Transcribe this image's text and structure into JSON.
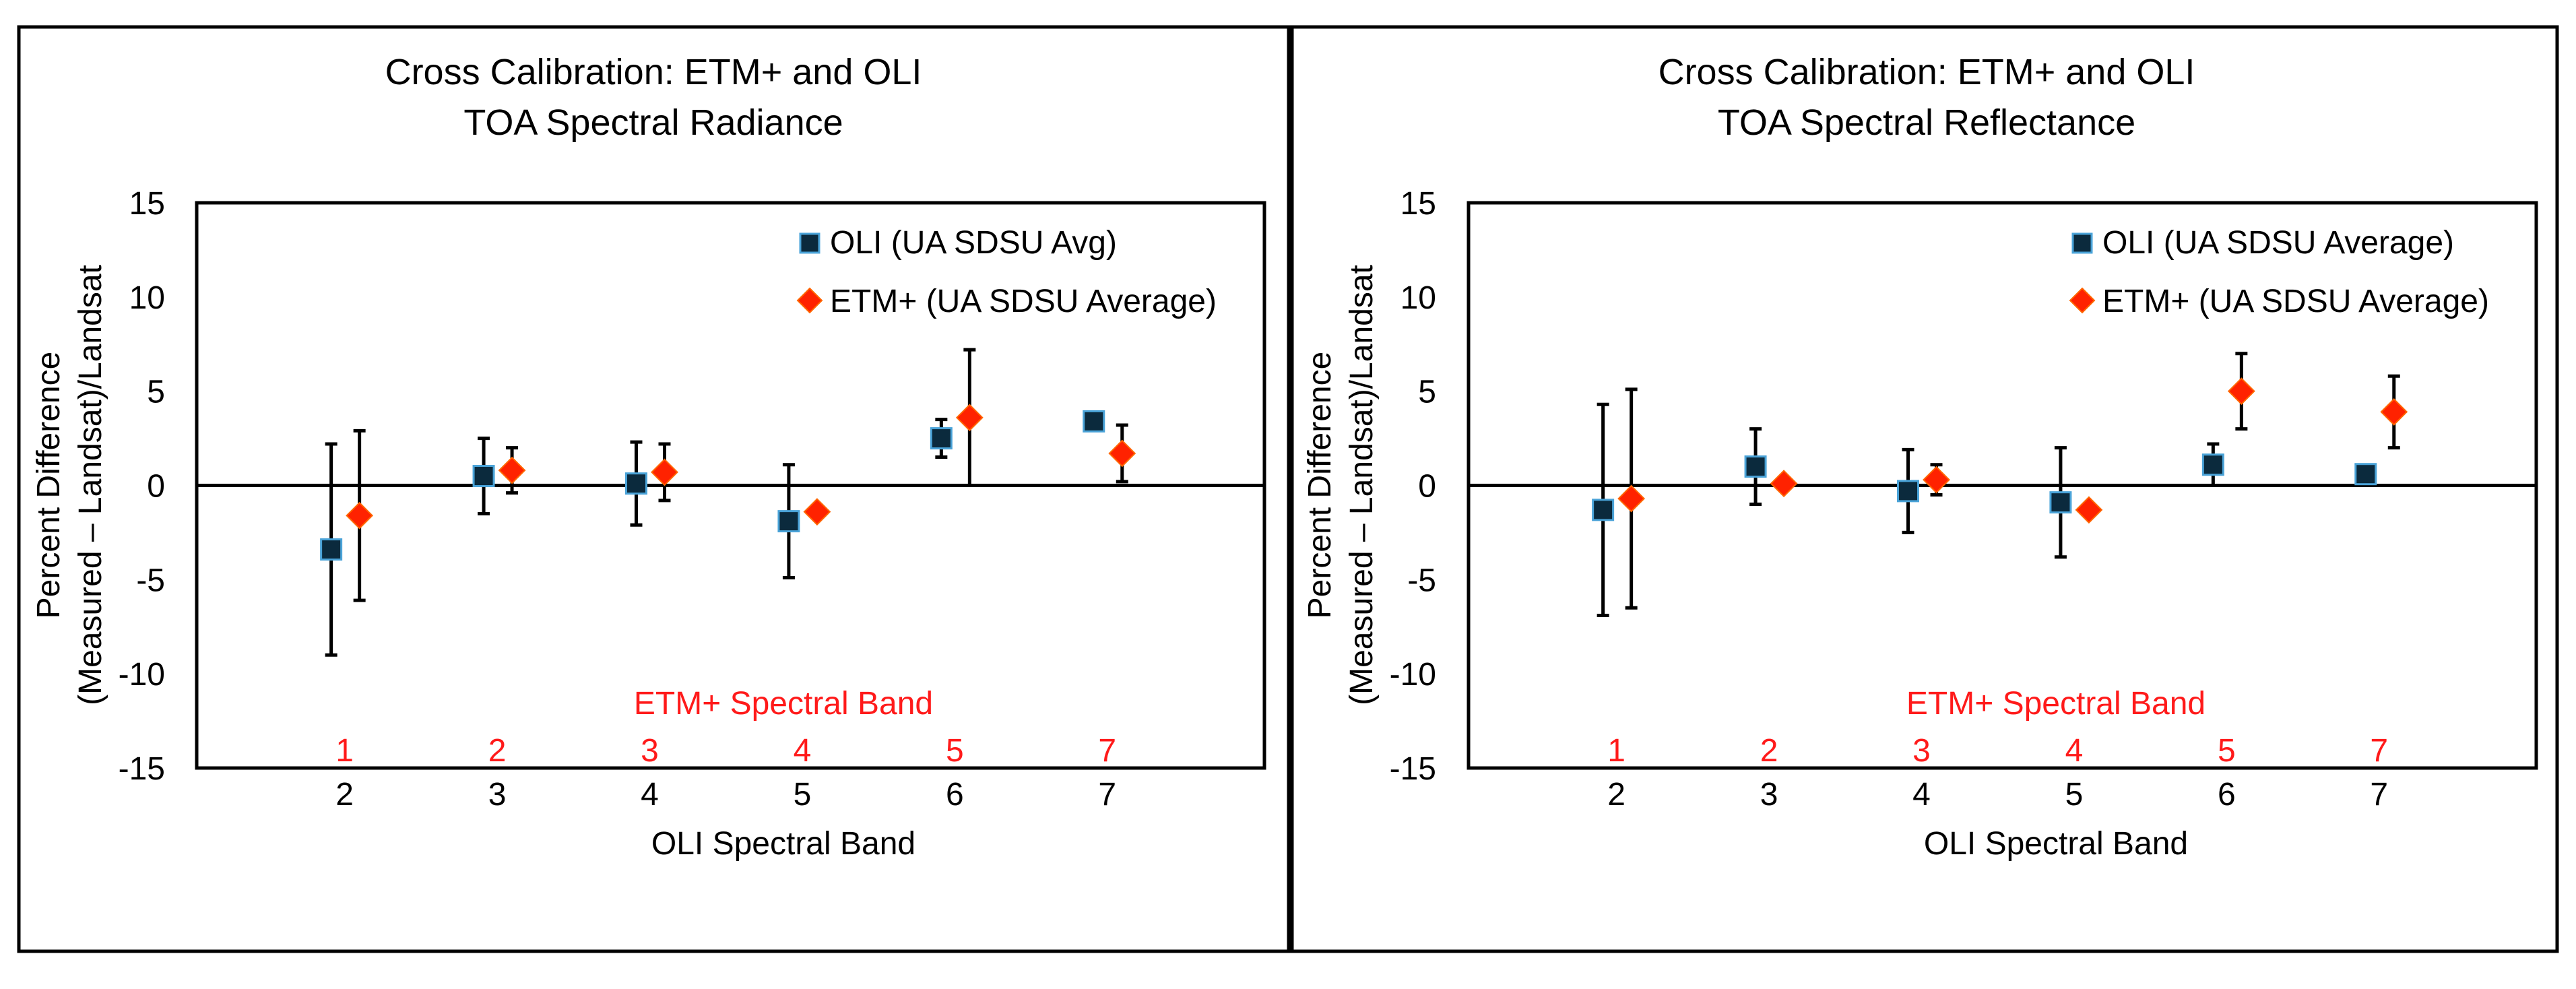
{
  "chart_data": [
    {
      "type": "scatter",
      "title": "Cross Calibration: ETM+ and OLI",
      "subtitle": "TOA Spectral Radiance",
      "ylabel_line1": "Percent Difference",
      "ylabel_line2": "(Measured – Landsat)/Landsat",
      "xlabel": "OLI Spectral Band",
      "secondary_xlabel": "ETM+ Spectral Band",
      "ylim": [
        -15,
        15
      ],
      "yticks": [
        15,
        10,
        5,
        0,
        -5,
        -10,
        -15
      ],
      "categories": [
        "2",
        "3",
        "4",
        "5",
        "6",
        "7"
      ],
      "secondary_categories": [
        "1",
        "2",
        "3",
        "4",
        "5",
        "7"
      ],
      "legend_position": "top-right",
      "series": [
        {
          "name": "OLI (UA SDSU Avg)",
          "marker": "square",
          "color": "#0b2a3d",
          "values": [
            -3.4,
            0.5,
            0.1,
            -1.9,
            2.5,
            3.4
          ],
          "error": [
            5.6,
            2.0,
            2.2,
            3.0,
            1.0,
            null
          ]
        },
        {
          "name": "ETM+ (UA SDSU Average)",
          "marker": "diamond",
          "color": "#ff2200",
          "values": [
            -1.6,
            0.8,
            0.7,
            -1.4,
            3.6,
            1.7
          ],
          "error": [
            4.5,
            1.2,
            1.5,
            null,
            3.6,
            1.5
          ]
        }
      ]
    },
    {
      "type": "scatter",
      "title": "Cross Calibration: ETM+ and OLI",
      "subtitle": "TOA Spectral Reflectance",
      "ylabel_line1": "Percent Difference",
      "ylabel_line2": "(Measured – Landsat)/Landsat",
      "xlabel": "OLI Spectral Band",
      "secondary_xlabel": "ETM+ Spectral Band",
      "ylim": [
        -15,
        15
      ],
      "yticks": [
        15,
        10,
        5,
        0,
        -5,
        -10,
        -15
      ],
      "categories": [
        "2",
        "3",
        "4",
        "5",
        "6",
        "7"
      ],
      "secondary_categories": [
        "1",
        "2",
        "3",
        "4",
        "5",
        "7"
      ],
      "legend_position": "top-right",
      "series": [
        {
          "name": "OLI (UA SDSU Average)",
          "marker": "square",
          "color": "#0b2a3d",
          "values": [
            -1.3,
            1.0,
            -0.3,
            -0.9,
            1.1,
            0.6
          ],
          "error": [
            5.6,
            2.0,
            2.2,
            2.9,
            1.1,
            null
          ]
        },
        {
          "name": "ETM+ (UA SDSU Average)",
          "marker": "diamond",
          "color": "#ff2200",
          "values": [
            -0.7,
            0.1,
            0.3,
            -1.3,
            5.0,
            3.9
          ],
          "error": [
            5.8,
            null,
            0.8,
            null,
            2.0,
            1.9
          ]
        }
      ]
    }
  ]
}
